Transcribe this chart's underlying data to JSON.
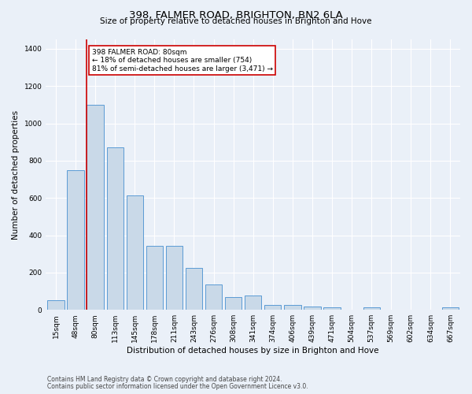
{
  "title": "398, FALMER ROAD, BRIGHTON, BN2 6LA",
  "subtitle": "Size of property relative to detached houses in Brighton and Hove",
  "xlabel": "Distribution of detached houses by size in Brighton and Hove",
  "ylabel": "Number of detached properties",
  "footnote1": "Contains HM Land Registry data © Crown copyright and database right 2024.",
  "footnote2": "Contains public sector information licensed under the Open Government Licence v3.0.",
  "categories": [
    "15sqm",
    "48sqm",
    "80sqm",
    "113sqm",
    "145sqm",
    "178sqm",
    "211sqm",
    "243sqm",
    "276sqm",
    "308sqm",
    "341sqm",
    "374sqm",
    "406sqm",
    "439sqm",
    "471sqm",
    "504sqm",
    "537sqm",
    "569sqm",
    "602sqm",
    "634sqm",
    "667sqm"
  ],
  "values": [
    52,
    750,
    1100,
    870,
    615,
    345,
    345,
    225,
    135,
    68,
    75,
    28,
    28,
    18,
    14,
    0,
    12,
    0,
    0,
    0,
    14
  ],
  "bar_color": "#c9d9e8",
  "bar_edge_color": "#5b9bd5",
  "highlight_line_index": 2,
  "highlight_box_text": "398 FALMER ROAD: 80sqm\n← 18% of detached houses are smaller (754)\n81% of semi-detached houses are larger (3,471) →",
  "highlight_box_color": "#ffffff",
  "highlight_box_edge_color": "#cc0000",
  "highlight_line_color": "#cc0000",
  "ylim": [
    0,
    1450
  ],
  "yticks": [
    0,
    200,
    400,
    600,
    800,
    1000,
    1200,
    1400
  ],
  "bg_color": "#eaf0f8",
  "plot_bg_color": "#eaf0f8",
  "grid_color": "#ffffff",
  "title_fontsize": 9.5,
  "subtitle_fontsize": 7.5,
  "xlabel_fontsize": 7.5,
  "ylabel_fontsize": 7.5,
  "tick_fontsize": 6.5,
  "footnote_fontsize": 5.5,
  "annot_fontsize": 6.5
}
